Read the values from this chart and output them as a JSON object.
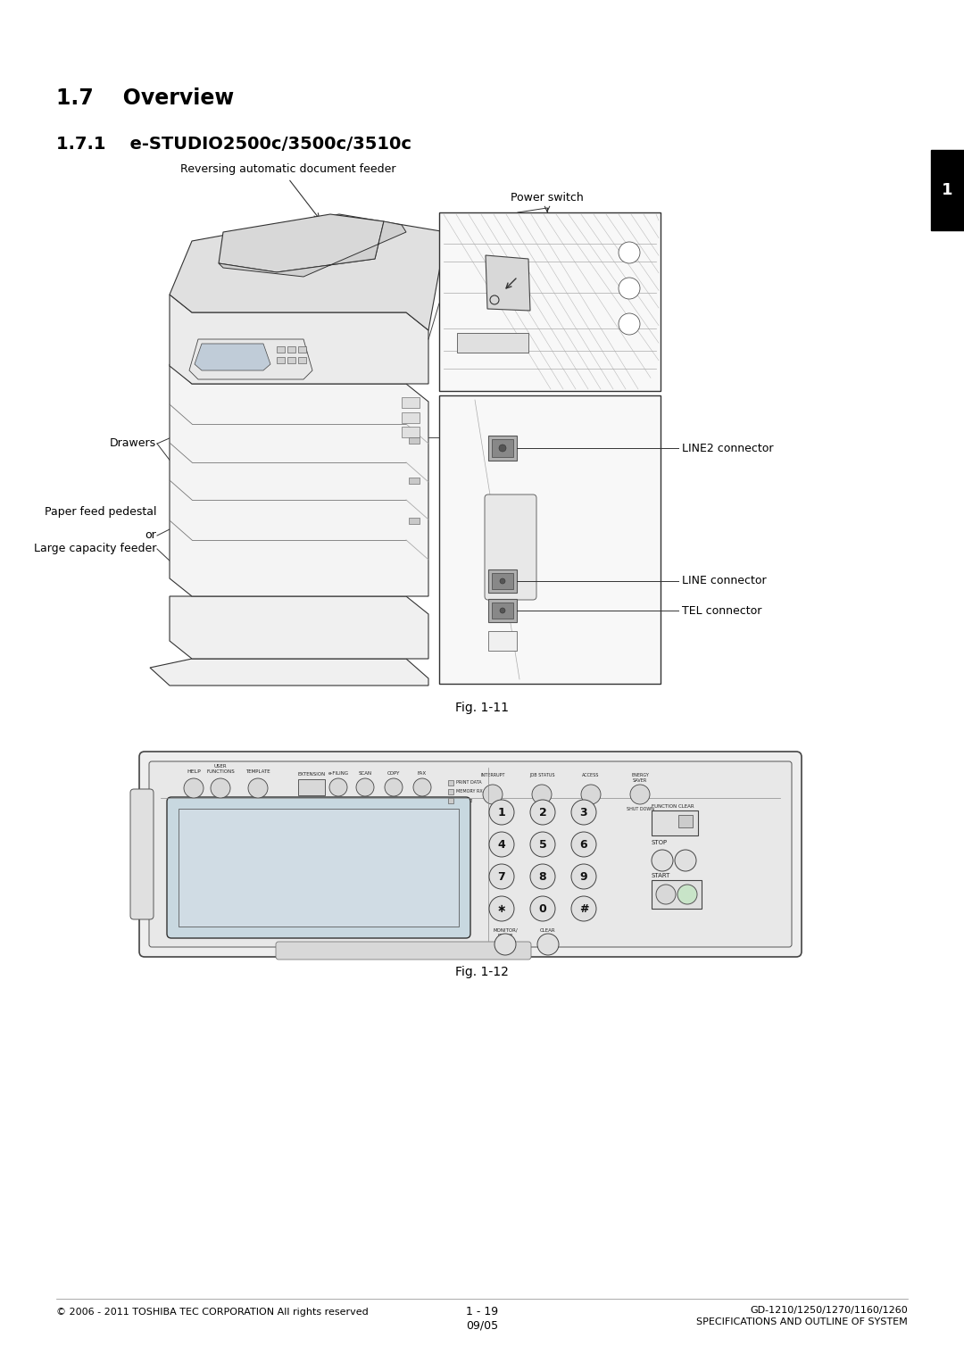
{
  "page_width": 10.8,
  "page_height": 15.27,
  "dpi": 100,
  "bg_color": "#ffffff",
  "text_color": "#000000",
  "section_title": "1.7    Overview",
  "subsection_title": "1.7.1    e-STUDIO2500c/3500c/3510c",
  "fig1_caption": "Fig. 1-11",
  "fig2_caption": "Fig. 1-12",
  "label_radf": "Reversing automatic document feeder",
  "label_power": "Power switch",
  "label_drawers": "Drawers",
  "label_pfp1": "Paper feed pedestal",
  "label_pfp2": "or",
  "label_pfp3": "Large capacity feeder",
  "label_line2": "LINE2 connector",
  "label_line": "LINE connector",
  "label_tel": "TEL connector",
  "footer_left": "© 2006 - 2011 TOSHIBA TEC CORPORATION All rights reserved",
  "footer_right1": "GD-1210/1250/1270/1160/1260",
  "footer_right2": "SPECIFICATIONS AND OUTLINE OF SYSTEM",
  "footer_center1": "1 - 19",
  "footer_center2": "09/05",
  "tab_label": "1"
}
